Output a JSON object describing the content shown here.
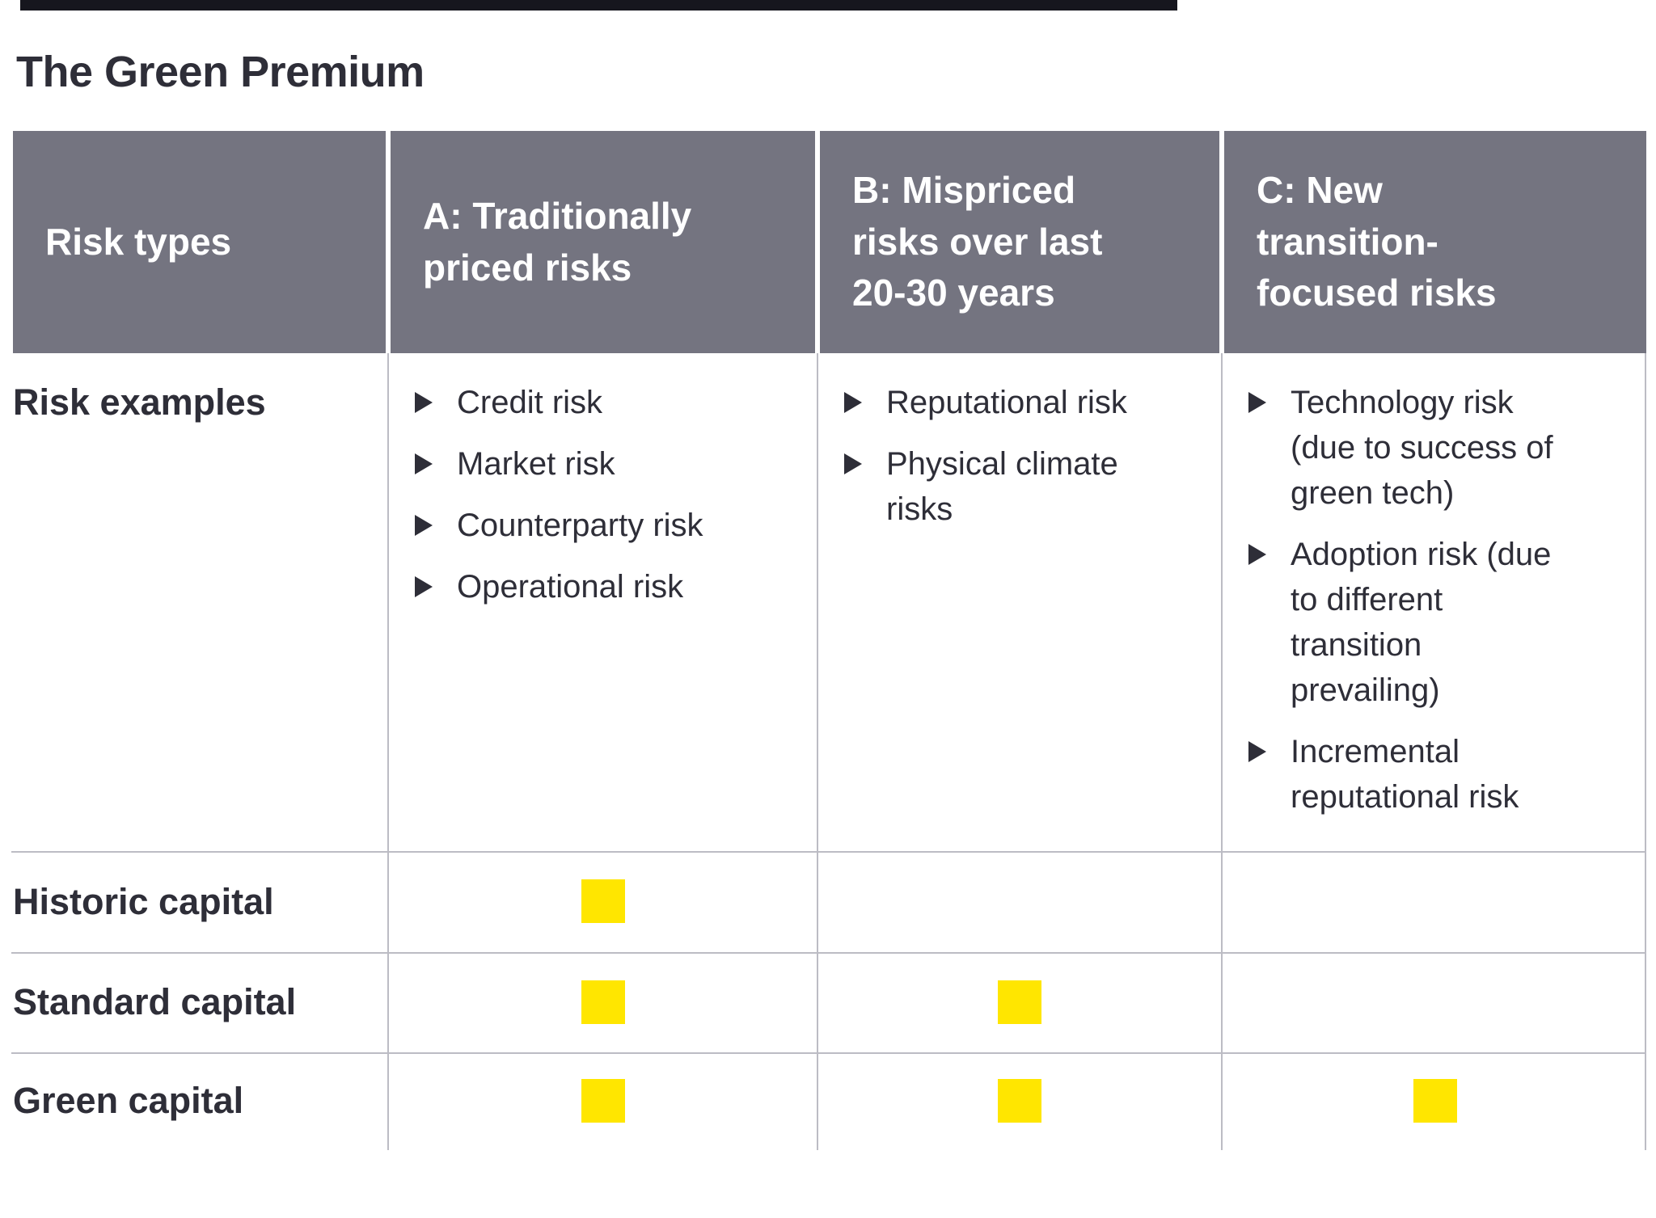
{
  "title": "The Green Premium",
  "colors": {
    "text_dark": "#2E2E38",
    "header_bg": "#747480",
    "header_text": "#FFFFFF",
    "accent_yellow": "#FFE600",
    "grid_line": "#BCBCC4",
    "top_bar": "#16161E"
  },
  "table": {
    "columns": [
      {
        "header": "Risk types",
        "header_lines": [
          "Risk types"
        ]
      },
      {
        "header": "A: Traditionally priced risks",
        "header_lines": [
          "A: Traditionally",
          "priced risks"
        ]
      },
      {
        "header": "B: Mispriced risks over last 20-30 years",
        "header_lines": [
          "B: Mispriced",
          "risks over last",
          "20-30 years"
        ]
      },
      {
        "header": "C: New transition-focused risks",
        "header_lines": [
          "C: New",
          "transition-",
          "focused risks"
        ]
      }
    ],
    "risk_examples": {
      "label": "Risk examples",
      "examples": {
        "a": [
          [
            "Credit risk"
          ],
          [
            "Market risk"
          ],
          [
            "Counterparty risk"
          ],
          [
            "Operational risk"
          ]
        ],
        "b": [
          [
            "Reputational risk"
          ],
          [
            "Physical climate",
            "risks"
          ]
        ],
        "c": [
          [
            "Technology risk",
            "(due to success of",
            "green tech)"
          ],
          [
            "Adoption risk (due",
            "to different",
            "transition",
            "prevailing)"
          ],
          [
            "Incremental",
            "reputational risk"
          ]
        ]
      }
    },
    "capital_rows": [
      {
        "label": "Historic capital",
        "marks": {
          "a": true,
          "b": false,
          "c": false
        }
      },
      {
        "label": "Standard capital",
        "marks": {
          "a": true,
          "b": true,
          "c": false
        }
      },
      {
        "label": "Green capital",
        "marks": {
          "a": true,
          "b": true,
          "c": true
        }
      }
    ]
  },
  "chart_data": {
    "type": "table",
    "title": "The Green Premium",
    "columns": [
      "Risk types",
      "A: Traditionally priced risks",
      "B: Mispriced risks over last 20-30 years",
      "C: New transition-focused risks"
    ],
    "rows": [
      {
        "label": "Risk examples",
        "A": [
          "Credit risk",
          "Market risk",
          "Counterparty risk",
          "Operational risk"
        ],
        "B": [
          "Reputational risk",
          "Physical climate risks"
        ],
        "C": [
          "Technology risk (due to success of green tech)",
          "Adoption risk (due to different transition prevailing)",
          "Incremental reputational risk"
        ]
      },
      {
        "label": "Historic capital",
        "A": true,
        "B": false,
        "C": false
      },
      {
        "label": "Standard capital",
        "A": true,
        "B": true,
        "C": false
      },
      {
        "label": "Green capital",
        "A": true,
        "B": true,
        "C": true
      }
    ]
  }
}
